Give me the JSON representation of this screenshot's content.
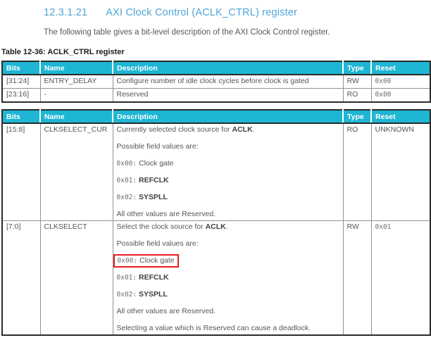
{
  "page": {
    "heading_number": "12.3.1.21",
    "heading_title": "AXI Clock Control (ACLK_CTRL) register",
    "intro": "The following table gives a bit-level description of the AXI Clock Control register.",
    "caption": "Table 12-36: ACLK_CTRL register"
  },
  "colors": {
    "heading_text": "#4fa5d6",
    "table_header_bg": "#1eb6d2",
    "highlight_border": "#ed1c24",
    "body_text": "#55565a"
  },
  "columns": [
    "Bits",
    "Name",
    "Description",
    "Type",
    "Reset"
  ],
  "table1": {
    "rows": [
      {
        "bits": "[31:24]",
        "name": "ENTRY_DELAY",
        "desc": "Configure number of idle clock cycles before clock is gated",
        "type": "RW",
        "reset": "0x00"
      },
      {
        "bits": "[23:16]",
        "name": "-",
        "desc": "Reserved",
        "type": "RO",
        "reset": "0x00"
      }
    ]
  },
  "table2": {
    "rows": [
      {
        "bits": "[15:8]",
        "name": "CLKSELECT_CUR",
        "type": "RO",
        "reset": "UNKNOWN",
        "desc_lines": [
          {
            "segments": [
              {
                "t": "Currently selected clock source for "
              },
              {
                "t": "ACLK",
                "b": true
              },
              {
                "t": "."
              }
            ]
          },
          {
            "segments": [
              {
                "t": "Possible field values are:"
              }
            ]
          },
          {
            "segments": [
              {
                "t": "0x00:",
                "m": true
              },
              {
                "t": " Clock gate"
              }
            ]
          },
          {
            "segments": [
              {
                "t": "0x01:",
                "m": true
              },
              {
                "t": " "
              },
              {
                "t": "REFCLK",
                "b": true
              }
            ]
          },
          {
            "segments": [
              {
                "t": "0x02:",
                "m": true
              },
              {
                "t": " "
              },
              {
                "t": "SYSPLL",
                "b": true
              }
            ]
          },
          {
            "segments": [
              {
                "t": "All other values are Reserved."
              }
            ]
          }
        ]
      },
      {
        "bits": "[7:0]",
        "name": "CLKSELECT",
        "type": "RW",
        "reset": "0x01",
        "desc_lines": [
          {
            "segments": [
              {
                "t": "Select the clock source for "
              },
              {
                "t": "ACLK",
                "b": true
              },
              {
                "t": "."
              }
            ]
          },
          {
            "segments": [
              {
                "t": "Possible field values are:"
              }
            ]
          },
          {
            "highlight": true,
            "segments": [
              {
                "t": "0x00:",
                "m": true
              },
              {
                "t": " Clock gate"
              }
            ]
          },
          {
            "segments": [
              {
                "t": "0x01:",
                "m": true
              },
              {
                "t": " "
              },
              {
                "t": "REFCLK",
                "b": true
              }
            ]
          },
          {
            "segments": [
              {
                "t": "0x02:",
                "m": true
              },
              {
                "t": " "
              },
              {
                "t": "SYSPLL",
                "b": true
              }
            ]
          },
          {
            "segments": [
              {
                "t": "All other values are Reserved."
              }
            ]
          },
          {
            "segments": [
              {
                "t": "Selecting a value which is Reserved can cause a deadlock."
              }
            ]
          }
        ]
      }
    ]
  }
}
